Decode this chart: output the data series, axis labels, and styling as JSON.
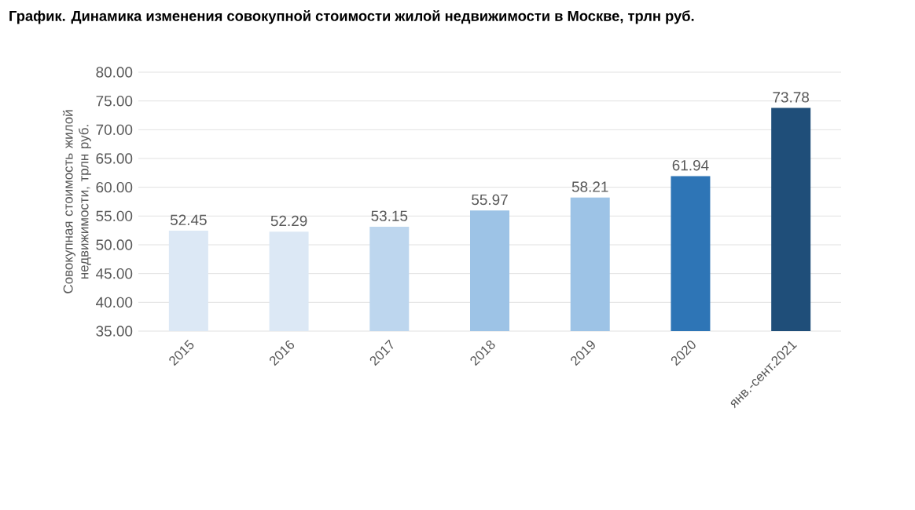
{
  "chart_data": {
    "type": "bar",
    "title": "График. Динамика изменения совокупной стоимости жилой недвижимости в Москве, трлн руб.",
    "ylabel": "Совокупная стоимость жилой недвижимости,  трлн руб.",
    "categories": [
      "2015",
      "2016",
      "2017",
      "2018",
      "2019",
      "2020",
      "янв.-сент.2021"
    ],
    "values": [
      52.45,
      52.29,
      53.15,
      55.97,
      58.21,
      61.94,
      73.78
    ],
    "colors": [
      "#dce8f5",
      "#dce8f5",
      "#bdd6ee",
      "#9dc3e6",
      "#9dc3e6",
      "#2e75b6",
      "#1f4e79"
    ],
    "ylim": [
      35,
      80
    ],
    "yticks": [
      {
        "value": 35,
        "label": "35.00"
      },
      {
        "value": 40,
        "label": "40.00"
      },
      {
        "value": 45,
        "label": "45.00"
      },
      {
        "value": 50,
        "label": "50.00"
      },
      {
        "value": 55,
        "label": "55.00"
      },
      {
        "value": 60,
        "label": "60.00"
      },
      {
        "value": 65,
        "label": "65.00"
      },
      {
        "value": 70,
        "label": "70.00"
      },
      {
        "value": 75,
        "label": "75.00"
      },
      {
        "value": 80,
        "label": "80.00"
      }
    ],
    "grid": "y",
    "data_labels": true
  }
}
